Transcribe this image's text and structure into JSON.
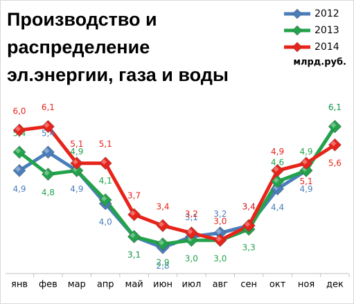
{
  "chart_data": {
    "type": "line",
    "title": [
      "Производство и",
      "распределение",
      "эл.энергии, газа и воды"
    ],
    "unit_label": "млрд.руб.",
    "categories": [
      "янв",
      "фев",
      "мар",
      "апр",
      "май",
      "июн",
      "июл",
      "авг",
      "сен",
      "окт",
      "ноя",
      "дек"
    ],
    "ylim": [
      2,
      7
    ],
    "series": [
      {
        "name": "2012",
        "color": "#4a7ebb",
        "values": [
          4.9,
          5.4,
          4.9,
          4.0,
          3.1,
          2.8,
          3.1,
          3.2,
          3.4,
          4.4,
          4.9,
          6.1
        ],
        "value_labels": [
          "4,9",
          "5,4",
          "4,9",
          "4,0",
          "3,1",
          "2,8",
          "3,1",
          "3,2",
          "3,4",
          "4,4",
          "4,9",
          "6,1"
        ]
      },
      {
        "name": "2013",
        "color": "#22a34b",
        "values": [
          5.4,
          4.8,
          4.9,
          4.1,
          3.1,
          2.9,
          3.0,
          3.0,
          3.3,
          4.6,
          4.9,
          6.1
        ],
        "value_labels": [
          "5,4",
          "4,8",
          "4,9",
          "4,1",
          "3,1",
          "2,9",
          "3,0",
          "3,0",
          "3,3",
          "4,6",
          "4,9",
          "6,1"
        ]
      },
      {
        "name": "2014",
        "color": "#e8231a",
        "values": [
          6.0,
          6.1,
          5.1,
          5.1,
          3.7,
          3.4,
          3.2,
          3.0,
          3.4,
          4.9,
          5.1,
          5.6
        ],
        "value_labels": [
          "6,0",
          "6,1",
          "5,1",
          "5,1",
          "3,7",
          "3,4",
          "3,2",
          "3,0",
          "3,4",
          "4,9",
          "5,1",
          "5,6"
        ]
      }
    ]
  }
}
